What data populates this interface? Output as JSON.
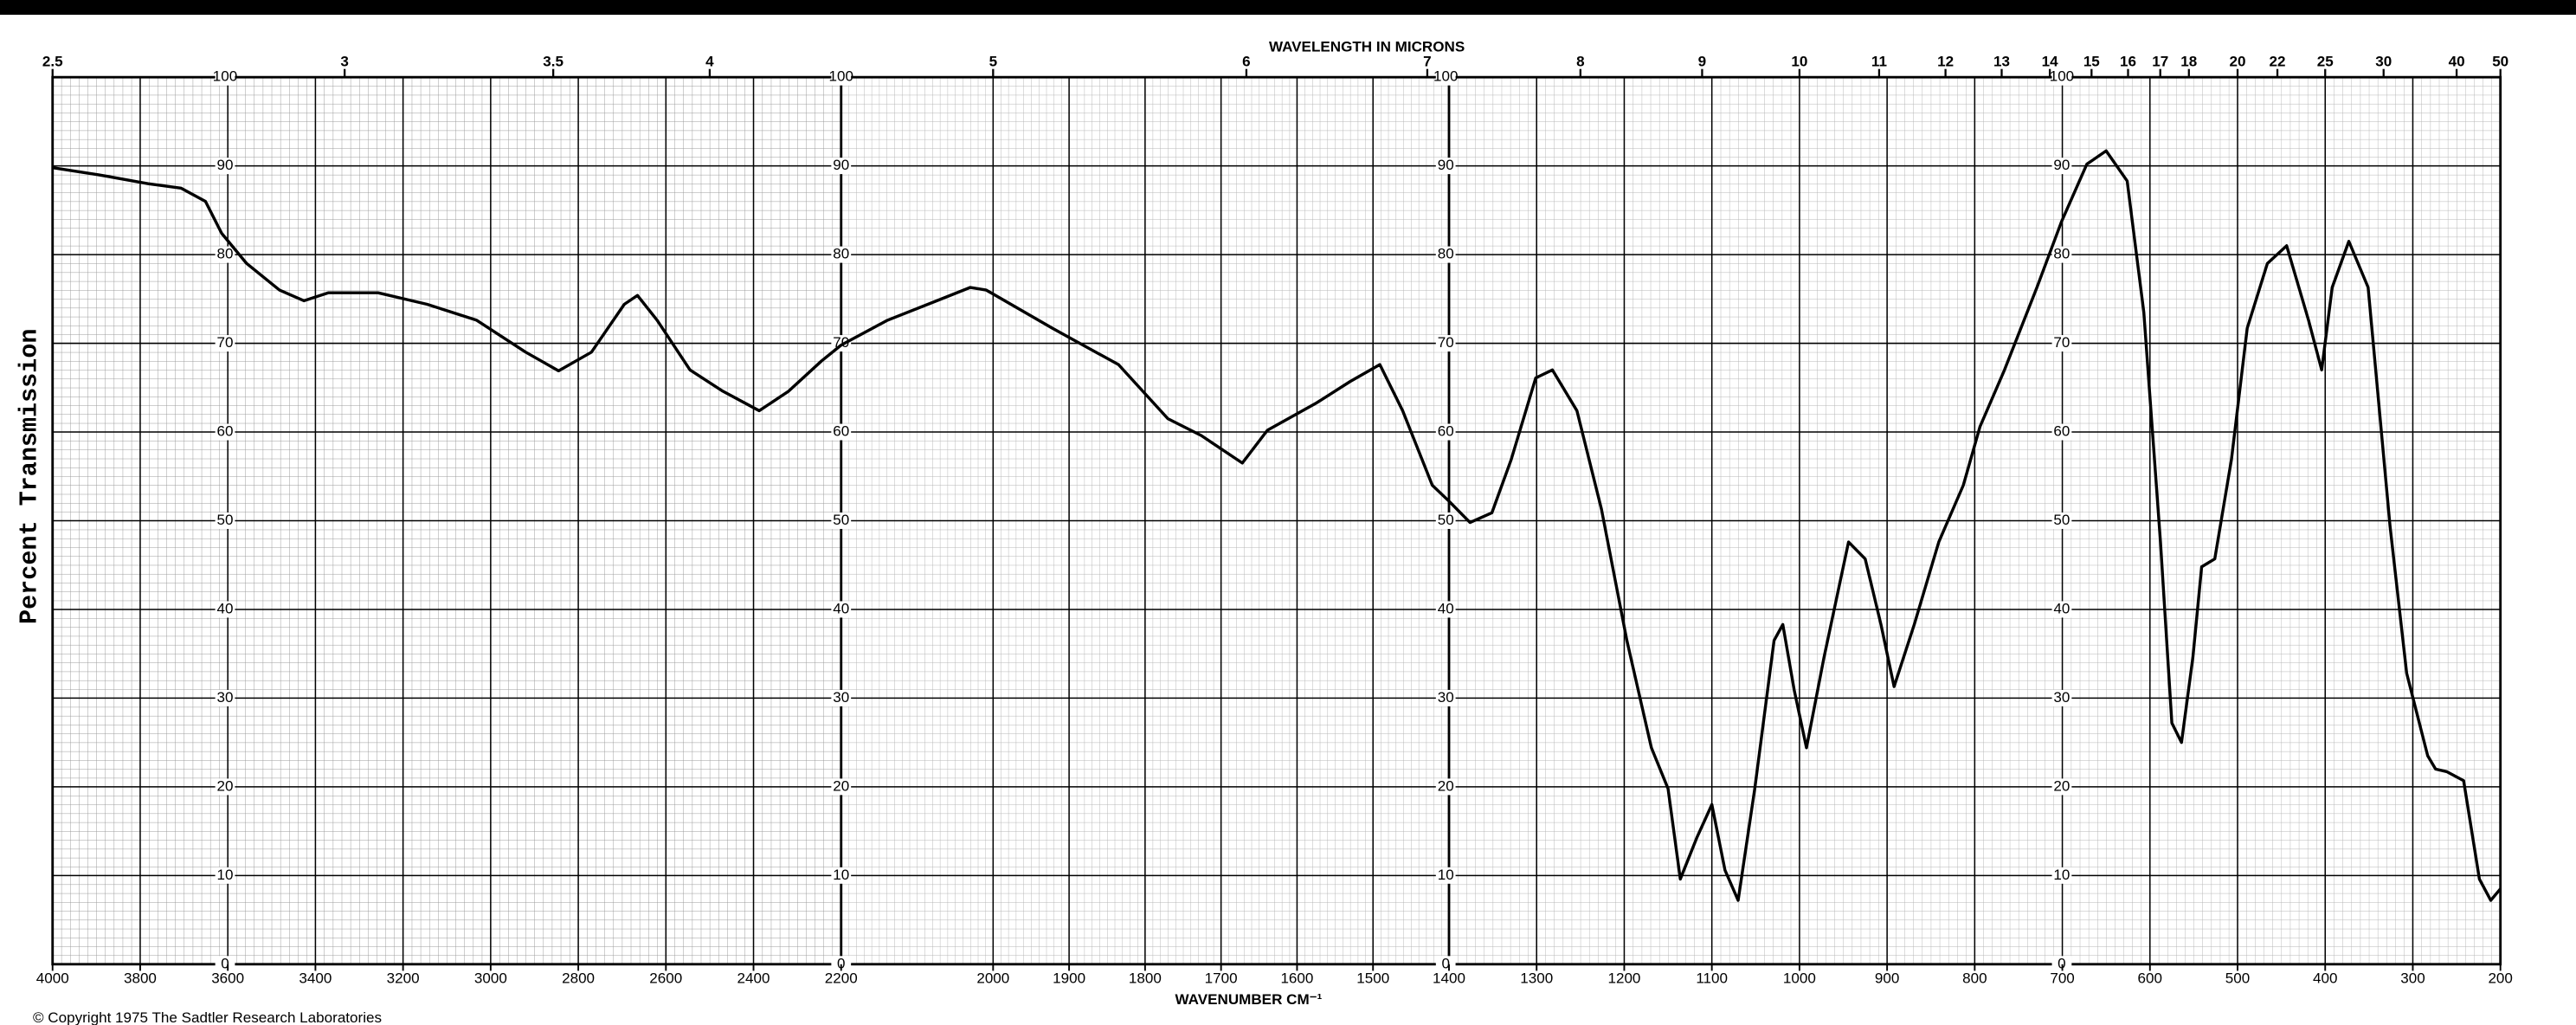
{
  "chart_data": {
    "type": "line",
    "top_axis_label": "WAVELENGTH IN MICRONS",
    "x_label": "WAVENUMBER CM⁻¹",
    "y_label": "Percent Transmission",
    "footnote": "© Copyright 1975 The Sadtler Research Laboratories",
    "color": "#000000",
    "panels": [
      {
        "xlim": [
          4000,
          2200
        ]
      },
      {
        "xlim": [
          2200,
          1400
        ]
      },
      {
        "xlim": [
          1400,
          200
        ]
      }
    ],
    "ylim": [
      0,
      100
    ],
    "yticks": [
      0,
      10,
      20,
      30,
      40,
      50,
      60,
      70,
      80,
      90,
      100
    ],
    "xticks": [
      4000,
      3800,
      3600,
      3400,
      3200,
      3000,
      2800,
      2600,
      2400,
      2200,
      2000,
      1900,
      1800,
      1700,
      1600,
      1500,
      1400,
      1300,
      1200,
      1100,
      1000,
      900,
      800,
      700,
      600,
      500,
      400,
      300,
      200
    ],
    "top_ticks": [
      2.5,
      3,
      3.5,
      4,
      5,
      6,
      7,
      8,
      9,
      10,
      11,
      12,
      13,
      14,
      15,
      16,
      17,
      18,
      20,
      22,
      25,
      30,
      40,
      50
    ],
    "grid": true,
    "x": [
      4000,
      3895,
      3782,
      3707,
      3651,
      3614,
      3557,
      3482,
      3426,
      3370,
      3257,
      3145,
      3032,
      2920,
      2845,
      2770,
      2695,
      2665,
      2620,
      2545,
      2470,
      2387,
      2320,
      2245,
      2200,
      2139,
      2074,
      2030,
      2009,
      1922,
      1835,
      1770,
      1726,
      1672,
      1639,
      1574,
      1530,
      1491,
      1461,
      1422,
      1400,
      1376,
      1351,
      1329,
      1301,
      1282,
      1254,
      1226,
      1197,
      1169,
      1150,
      1136,
      1117,
      1100,
      1085,
      1070,
      1051,
      1029,
      1019,
      1006,
      992,
      972,
      944,
      925,
      907,
      892,
      869,
      841,
      813,
      794,
      766,
      729,
      701,
      672,
      650,
      626,
      607,
      588,
      575,
      564,
      551,
      541,
      526,
      507,
      489,
      466,
      444,
      419,
      404,
      392,
      373,
      351,
      326,
      307,
      283,
      274,
      261,
      242,
      224,
      211,
      200
    ],
    "values": [
      89.8,
      89,
      88,
      87.5,
      86,
      82.4,
      79,
      76,
      74.8,
      75.7,
      75.7,
      74.4,
      72.6,
      69,
      66.9,
      69,
      74.4,
      75.4,
      72.6,
      67,
      64.6,
      62.4,
      64.6,
      68,
      69.8,
      72.6,
      74.8,
      76.3,
      76,
      71.7,
      67.6,
      61.5,
      59.6,
      56.5,
      60.2,
      63.3,
      65.7,
      67.6,
      62.4,
      54,
      52.2,
      49.8,
      50.9,
      56.9,
      66.1,
      67,
      62.4,
      51.3,
      36.5,
      24.4,
      19.8,
      9.6,
      14.3,
      18,
      10.6,
      7.2,
      19.8,
      36.5,
      38.3,
      30.9,
      24.4,
      34.6,
      47.6,
      45.7,
      38.3,
      31.3,
      38.3,
      47.6,
      54,
      60.6,
      67,
      76.3,
      83.7,
      90.2,
      91.7,
      88.3,
      73.5,
      47.6,
      27.2,
      25,
      34.6,
      44.8,
      45.7,
      56.9,
      71.7,
      79,
      81,
      72.6,
      67,
      76.3,
      81.5,
      76.3,
      49.4,
      32.8,
      23.5,
      22,
      21.7,
      20.7,
      9.6,
      7.2,
      8.5
    ]
  }
}
